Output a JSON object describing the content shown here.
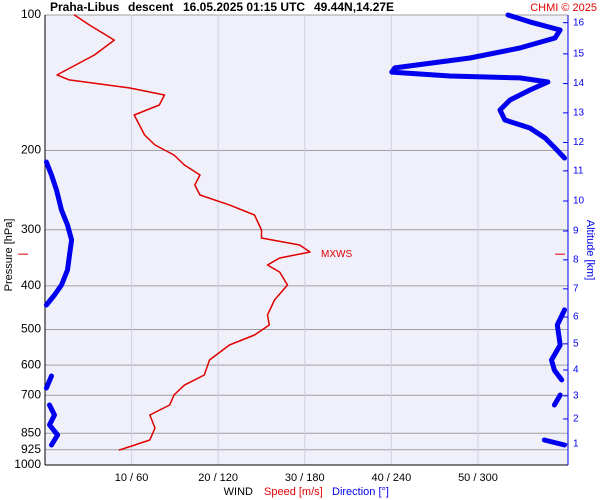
{
  "chart_data": {
    "type": "sounding",
    "title": {
      "station": "Praha-Libus",
      "phase": "descent",
      "time": "16.05.2025 01:15 UTC",
      "position": "49.44N,14.27E"
    },
    "credit": "CHMI © 2025",
    "y_label": "Pressure [hPa]",
    "y2_label": "Altitude [km]",
    "x_label": "WIND",
    "y_log": true,
    "ylim": [
      100,
      1000
    ],
    "yticks": [
      100,
      200,
      300,
      400,
      500,
      600,
      700,
      850,
      925,
      1000
    ],
    "xlim": [
      0,
      60.4
    ],
    "x2lim": [
      0,
      362.4
    ],
    "xticks": [
      {
        "value": 10,
        "label": "10 / 60"
      },
      {
        "value": 20,
        "label": "20 / 120"
      },
      {
        "value": 30,
        "label": "30 / 180"
      },
      {
        "value": 40,
        "label": "40 / 240"
      },
      {
        "value": 50,
        "label": "50 / 300"
      }
    ],
    "altitude_ticks": [
      {
        "value": 1,
        "pressure": 898
      },
      {
        "value": 2,
        "pressure": 790
      },
      {
        "value": 3,
        "pressure": 702
      },
      {
        "value": 4,
        "pressure": 615
      },
      {
        "value": 5,
        "pressure": 538
      },
      {
        "value": 6,
        "pressure": 469
      },
      {
        "value": 7,
        "pressure": 406
      },
      {
        "value": 8,
        "pressure": 350
      },
      {
        "value": 9,
        "pressure": 302
      },
      {
        "value": 10,
        "pressure": 259
      },
      {
        "value": 11,
        "pressure": 222
      },
      {
        "value": 12,
        "pressure": 192
      },
      {
        "value": 13,
        "pressure": 165
      },
      {
        "value": 14,
        "pressure": 142
      },
      {
        "value": 15,
        "pressure": 122
      },
      {
        "value": 16,
        "pressure": 104
      }
    ],
    "annotation": {
      "text": "MXWS",
      "pressure": 340,
      "color": "#e00000"
    },
    "grid": true,
    "series": [
      {
        "name": "Speed [m/s]",
        "color": "#e00000",
        "axis": "x",
        "pressure": [
          100,
          105.2,
          113.7,
          122.7,
          135.9,
          139.4,
          145.3,
          150.6,
          158.5,
          166.8,
          175.6,
          184.8,
          194.5,
          204.7,
          215.4,
          226.7,
          238.6,
          251.2,
          264.3,
          278.3,
          300.4,
          313,
          324.4,
          336.3,
          346.7,
          359.4,
          372.6,
          398.1,
          429.9,
          464.2,
          488.5,
          514.1,
          541.2,
          584.3,
          631,
          664.3,
          699,
          735.6,
          774.3,
          827.6,
          879.9,
          926
        ],
        "values": [
          3.4,
          5.1,
          8.0,
          5.7,
          1.4,
          2.8,
          9.8,
          13.8,
          13.2,
          10.3,
          10.9,
          11.5,
          12.7,
          14.9,
          16.1,
          17.9,
          17.3,
          17.9,
          21.3,
          24.2,
          25.0,
          25.0,
          29.4,
          30.6,
          27.1,
          25.7,
          27.1,
          28.0,
          26.5,
          25.7,
          25.9,
          24.2,
          21.3,
          19.0,
          18.4,
          16.1,
          14.9,
          14.4,
          12.1,
          12.7,
          12.1,
          8.6
        ]
      },
      {
        "name": "Direction [°]",
        "color": "#0000ee",
        "axis": "x2",
        "pressure": [
          100,
          103.6,
          108,
          112.5,
          118.4,
          124.6,
          131.1,
          133.9,
          136.6,
          138,
          140.9,
          146.8,
          154.5,
          162.6,
          171.1,
          178.3,
          187.6,
          197.5,
          207.9,
          null,
          212.2,
          226.7,
          244.8,
          271.3,
          292.9,
          316.2,
          341.5,
          368.6,
          398.1,
          419,
          441,
          null,
          452.2,
          488.5,
          541.2,
          584.3,
          615.6,
          647.1,
          null,
          634.1,
          674.4,
          null,
          699,
          735.6,
          null,
          735.6,
          774.3,
          814.6,
          857.5,
          902.6,
          null,
          879.9,
          902.6
        ],
        "values": [
          320.8,
          336,
          356.9,
          353.4,
          329,
          294.4,
          242.4,
          240.3,
          280.6,
          329,
          348.5,
          336,
          322.2,
          315.3,
          318.7,
          336,
          346.5,
          353.4,
          360,
          null,
          1,
          4.5,
          8,
          11.4,
          15.6,
          18.4,
          17,
          15.6,
          11.4,
          6.6,
          1,
          null,
          360,
          355,
          357,
          351,
          353,
          358,
          null,
          4.5,
          1,
          null,
          357,
          353,
          null,
          3.1,
          6.6,
          3.1,
          8.7,
          4.5,
          null,
          346,
          360
        ]
      }
    ]
  }
}
